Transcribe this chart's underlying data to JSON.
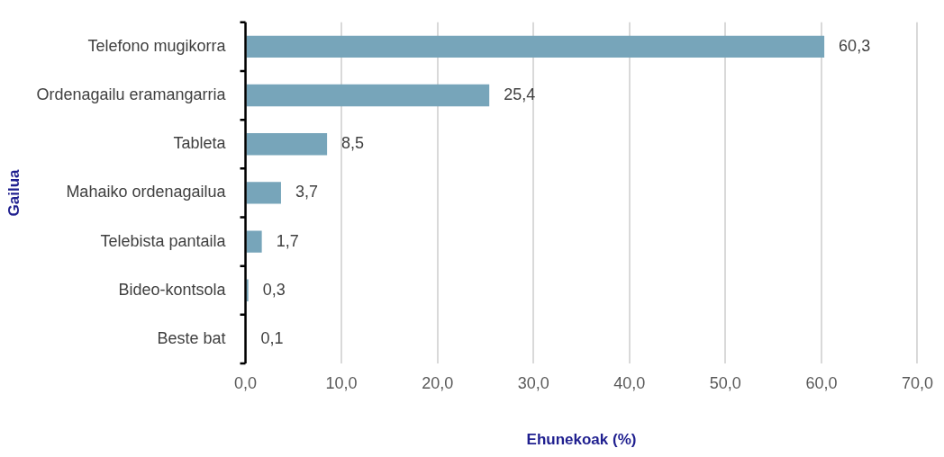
{
  "chart_data": {
    "type": "bar",
    "orientation": "horizontal",
    "xlabel": "Ehunekoak (%)",
    "ylabel": "Gailua",
    "categories": [
      "Telefono mugikorra",
      "Ordenagailu eramangarria",
      "Tableta",
      "Mahaiko ordenagailua",
      "Telebista pantaila",
      "Bideo-kontsola",
      "Beste bat"
    ],
    "values": [
      60.3,
      25.4,
      8.5,
      3.7,
      1.7,
      0.3,
      0.1
    ],
    "value_labels": [
      "60,3",
      "25,4",
      "8,5",
      "3,7",
      "1,7",
      "0,3",
      "0,1"
    ],
    "color": "#77a5ba",
    "xlim": [
      0,
      70
    ],
    "xticks": [
      {
        "value": 0,
        "label": "0,0"
      },
      {
        "value": 10,
        "label": "10,0"
      },
      {
        "value": 20,
        "label": "20,0"
      },
      {
        "value": 30,
        "label": "30,0"
      },
      {
        "value": 40,
        "label": "40,0"
      },
      {
        "value": 50,
        "label": "50,0"
      },
      {
        "value": 60,
        "label": "60,0"
      },
      {
        "value": 70,
        "label": "70,0"
      }
    ],
    "grid": "x",
    "legend": false
  }
}
